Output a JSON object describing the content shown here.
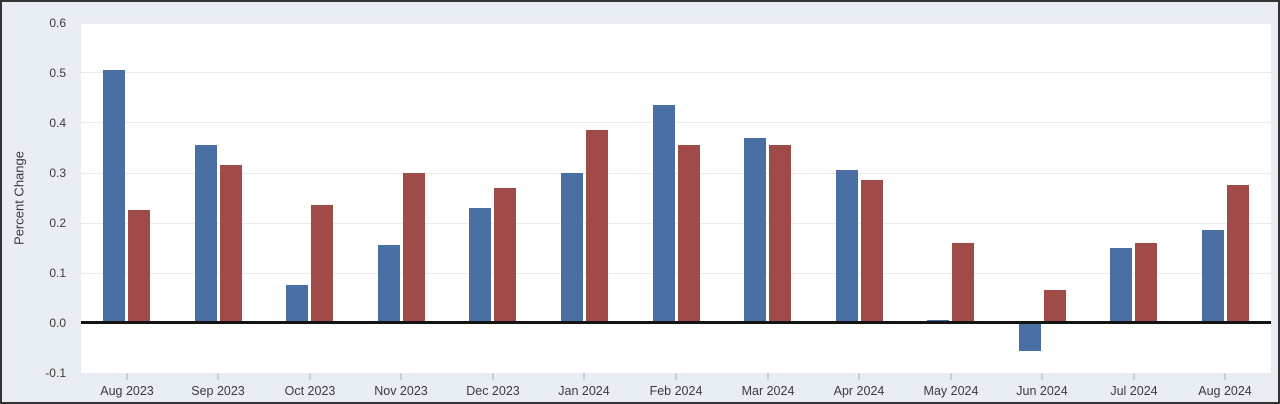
{
  "colors": {
    "frame_border": "#333333",
    "page_background": "#e9edf4",
    "plot_background": "#ffffff",
    "gridline": "#ececf0",
    "zero_line": "#141414",
    "tick_mark": "#c6cfe2",
    "text": "#3b3b3b",
    "series_blue": "#4a6fa5",
    "series_red": "#a04b47"
  },
  "chart_data": {
    "type": "bar",
    "title": "",
    "xlabel": "",
    "ylabel": "Percent Change",
    "ylim": [
      -0.1,
      0.6
    ],
    "grid": true,
    "legend": "none",
    "ytick_values": [
      0.6,
      0.5,
      0.4,
      0.3,
      0.2,
      0.1,
      0.0,
      -0.1
    ],
    "ytick_labels": [
      "0.6",
      "0.5",
      "0.4",
      "0.3",
      "0.2",
      "0.1",
      "0.0",
      "-0.1"
    ],
    "categories": [
      "Aug 2023",
      "Sep 2023",
      "Oct 2023",
      "Nov 2023",
      "Dec 2023",
      "Jan 2024",
      "Feb 2024",
      "Mar 2024",
      "Apr 2024",
      "May 2024",
      "Jun 2024",
      "Jul 2024",
      "Aug 2024"
    ],
    "series": [
      {
        "name": "blue",
        "color": "#4a6fa5",
        "values": [
          0.505,
          0.355,
          0.075,
          0.155,
          0.23,
          0.3,
          0.435,
          0.37,
          0.305,
          0.005,
          -0.055,
          0.15,
          0.185
        ]
      },
      {
        "name": "red",
        "color": "#a04b47",
        "values": [
          0.225,
          0.315,
          0.235,
          0.3,
          0.27,
          0.385,
          0.355,
          0.355,
          0.285,
          0.16,
          0.065,
          0.16,
          0.275
        ]
      }
    ]
  }
}
